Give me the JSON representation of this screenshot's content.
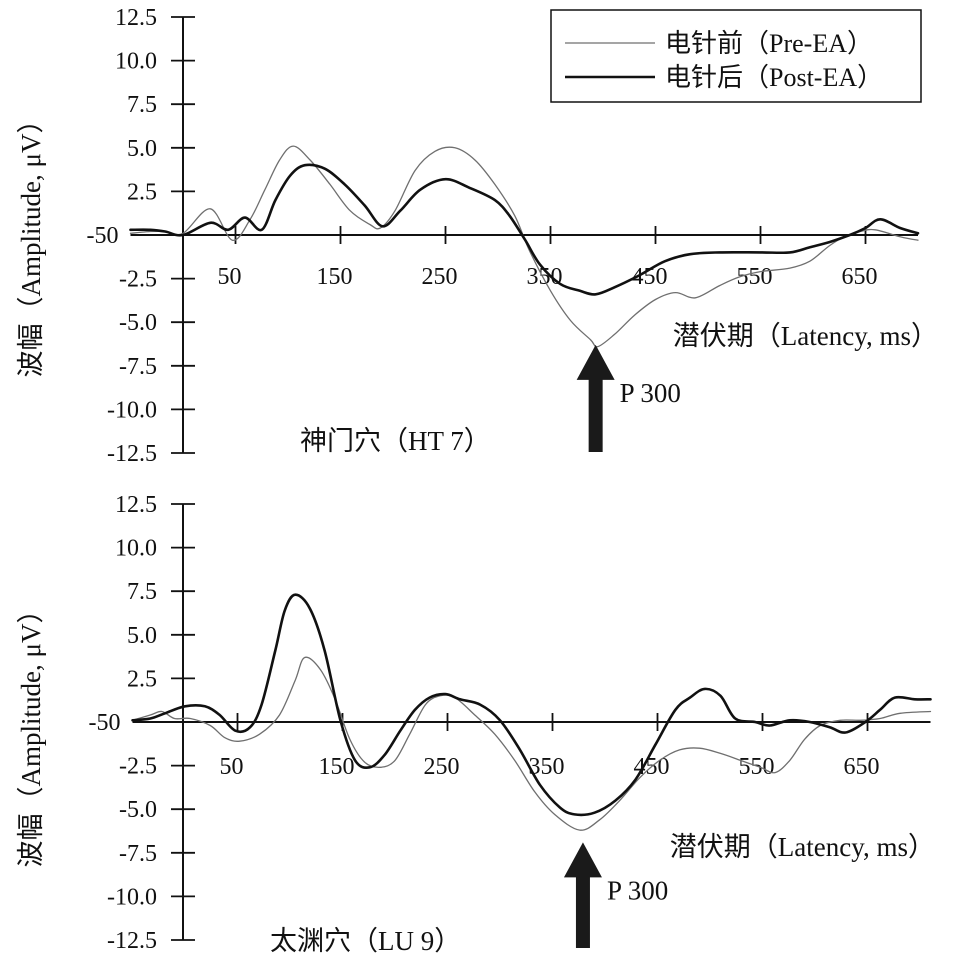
{
  "chart_data": [
    {
      "type": "line",
      "title": "神门穴（HT 7）",
      "xlabel": "潜伏期（Latency, ms）",
      "ylabel": "波幅（Amplitude, μV）",
      "xlim": [
        -50,
        700
      ],
      "ylim": [
        -12.5,
        12.5
      ],
      "grid": false,
      "legend": "top-right",
      "xticks": [
        {
          "value": -50,
          "label": "-50"
        },
        {
          "value": 50,
          "label": "50"
        },
        {
          "value": 150,
          "label": "150"
        },
        {
          "value": 250,
          "label": "250"
        },
        {
          "value": 350,
          "label": "350"
        },
        {
          "value": 450,
          "label": "450"
        },
        {
          "value": 550,
          "label": "550"
        },
        {
          "value": 650,
          "label": "650"
        }
      ],
      "yticks": [
        {
          "value": 12.5,
          "label": "12.5"
        },
        {
          "value": 10,
          "label": "10.0"
        },
        {
          "value": 7.5,
          "label": "7.5"
        },
        {
          "value": 5,
          "label": "5.0"
        },
        {
          "value": 2.5,
          "label": "2.5"
        },
        {
          "value": -2.5,
          "label": "-2.5"
        },
        {
          "value": -5,
          "label": "-5.0"
        },
        {
          "value": -7.5,
          "label": "-7.5"
        },
        {
          "value": -10,
          "label": "-10.0"
        },
        {
          "value": -12.5,
          "label": "-12.5"
        }
      ],
      "annotations": [
        {
          "label": "P 300",
          "x": 393,
          "y": -6.3
        }
      ],
      "series": [
        {
          "name": "电针前（Pre-EA）",
          "color": "#6f6f6f",
          "x": [
            -50,
            -31,
            -17,
            0,
            26,
            47,
            64,
            78,
            92,
            105,
            121,
            140,
            159,
            178,
            188,
            202,
            221,
            240,
            259,
            278,
            297,
            316,
            330,
            350,
            369,
            388,
            395,
            411,
            430,
            450,
            469,
            488,
            511,
            530,
            550,
            578,
            597,
            616,
            630,
            645,
            659,
            683,
            700
          ],
          "y": [
            0.1,
            0.2,
            0.2,
            0.1,
            1.5,
            -0.3,
            0.9,
            2.6,
            4.3,
            5.1,
            4.3,
            2.9,
            1.4,
            0.6,
            0.4,
            1.4,
            3.7,
            4.8,
            5.0,
            4.3,
            2.9,
            1.1,
            -0.9,
            -3.2,
            -4.9,
            -6.0,
            -6.4,
            -5.7,
            -4.6,
            -3.7,
            -3.3,
            -3.6,
            -2.9,
            -2.4,
            -2.1,
            -1.9,
            -1.5,
            -0.6,
            -0.1,
            0.2,
            0.3,
            -0.1,
            -0.3
          ]
        },
        {
          "name": "电针后（Post-EA）",
          "color": "#111111",
          "x": [
            -50,
            -31,
            -17,
            0,
            26,
            43,
            59,
            75,
            88,
            102,
            116,
            135,
            154,
            173,
            190,
            207,
            226,
            250,
            273,
            297,
            311,
            326,
            340,
            359,
            378,
            393,
            411,
            435,
            459,
            483,
            511,
            550,
            578,
            597,
            616,
            635,
            650,
            664,
            683,
            700
          ],
          "y": [
            0.3,
            0.3,
            0.2,
            0.0,
            0.7,
            0.3,
            1.0,
            0.3,
            2.0,
            3.4,
            4.0,
            3.8,
            2.9,
            1.7,
            0.5,
            1.4,
            2.6,
            3.2,
            2.7,
            2.0,
            1.1,
            -0.3,
            -1.7,
            -2.8,
            -3.2,
            -3.4,
            -3.0,
            -2.3,
            -1.5,
            -1.1,
            -1.0,
            -1.0,
            -1.0,
            -0.7,
            -0.4,
            0.0,
            0.4,
            0.9,
            0.4,
            0.1
          ]
        }
      ]
    },
    {
      "type": "line",
      "title": "太渊穴（LU 9）",
      "xlabel": "潜伏期（Latency, ms）",
      "ylabel": "波幅（Amplitude, μV）",
      "xlim": [
        -50,
        710
      ],
      "ylim": [
        -12.5,
        12.5
      ],
      "grid": false,
      "xticks": [
        {
          "value": -50,
          "label": "-50"
        },
        {
          "value": 50,
          "label": "50"
        },
        {
          "value": 150,
          "label": "150"
        },
        {
          "value": 250,
          "label": "250"
        },
        {
          "value": 350,
          "label": "350"
        },
        {
          "value": 450,
          "label": "450"
        },
        {
          "value": 550,
          "label": "550"
        },
        {
          "value": 650,
          "label": "650"
        }
      ],
      "yticks": [
        {
          "value": 12.5,
          "label": "12.5"
        },
        {
          "value": 10,
          "label": "10.0"
        },
        {
          "value": 7.5,
          "label": "7.5"
        },
        {
          "value": 5,
          "label": "5.0"
        },
        {
          "value": 2.5,
          "label": "2.5"
        },
        {
          "value": -2.5,
          "label": "-2.5"
        },
        {
          "value": -5,
          "label": "-5.0"
        },
        {
          "value": -7.5,
          "label": "-7.5"
        },
        {
          "value": -10,
          "label": "-10.0"
        },
        {
          "value": -12.5,
          "label": "-12.5"
        }
      ],
      "annotations": [
        {
          "label": "P 300",
          "x": 379,
          "y": -6.9
        }
      ],
      "series": [
        {
          "color": "#6f6f6f",
          "x": [
            -50,
            -33,
            -22,
            -10,
            5,
            24,
            38,
            52,
            71,
            90,
            105,
            114,
            129,
            143,
            157,
            171,
            186,
            200,
            214,
            229,
            243,
            257,
            276,
            295,
            314,
            333,
            352,
            376,
            395,
            414,
            433,
            452,
            471,
            490,
            510,
            529,
            548,
            562,
            576,
            590,
            605,
            624,
            643,
            662,
            681,
            710
          ],
          "y": [
            0.1,
            0.4,
            0.6,
            0.2,
            0.2,
            -0.2,
            -0.9,
            -1.1,
            -0.7,
            0.4,
            2.4,
            3.7,
            3.0,
            1.3,
            -1.0,
            -2.3,
            -2.6,
            -2.2,
            -0.7,
            1.0,
            1.5,
            1.4,
            0.4,
            -0.7,
            -2.2,
            -4.0,
            -5.3,
            -6.2,
            -5.6,
            -4.5,
            -3.2,
            -2.2,
            -1.6,
            -1.5,
            -1.8,
            -2.2,
            -2.6,
            -2.9,
            -2.2,
            -1.0,
            -0.2,
            0.1,
            0.1,
            0.2,
            0.5,
            0.6
          ]
        },
        {
          "color": "#111111",
          "x": [
            -50,
            -33,
            -19,
            0,
            19,
            33,
            48,
            62,
            73,
            86,
            95,
            105,
            119,
            133,
            148,
            162,
            176,
            190,
            205,
            219,
            233,
            248,
            262,
            281,
            300,
            319,
            338,
            357,
            371,
            390,
            410,
            429,
            448,
            467,
            481,
            495,
            510,
            524,
            543,
            557,
            576,
            595,
            614,
            629,
            648,
            662,
            676,
            695,
            710
          ],
          "y": [
            0.1,
            0.2,
            0.5,
            0.9,
            0.9,
            0.4,
            -0.5,
            -0.3,
            1.0,
            4.1,
            6.4,
            7.3,
            6.5,
            4.1,
            0.1,
            -2.2,
            -2.6,
            -1.9,
            -0.5,
            0.7,
            1.4,
            1.6,
            1.3,
            1.0,
            0.1,
            -1.6,
            -3.6,
            -4.9,
            -5.3,
            -5.2,
            -4.5,
            -3.3,
            -1.3,
            0.7,
            1.4,
            1.9,
            1.5,
            0.2,
            0.0,
            -0.2,
            0.1,
            0.0,
            -0.3,
            -0.6,
            0.0,
            0.7,
            1.4,
            1.3,
            1.3
          ]
        }
      ]
    }
  ]
}
